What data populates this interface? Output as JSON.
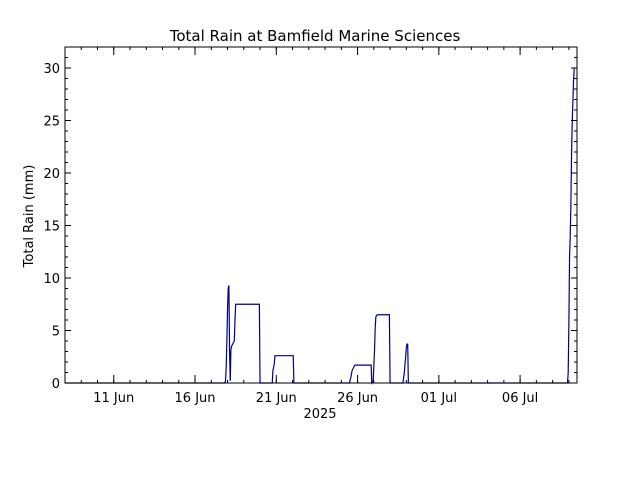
{
  "chart_data": {
    "type": "line",
    "title": "Total Rain at Bamfield Marine Sciences",
    "xlabel": "2025",
    "ylabel": "Total Rain (mm)",
    "x_ticks": [
      {
        "date": "2025-06-11",
        "label": "11 Jun"
      },
      {
        "date": "2025-06-16",
        "label": "16 Jun"
      },
      {
        "date": "2025-06-21",
        "label": "21 Jun"
      },
      {
        "date": "2025-06-26",
        "label": "26 Jun"
      },
      {
        "date": "2025-07-01",
        "label": "01 Jul"
      },
      {
        "date": "2025-07-06",
        "label": "06 Jul"
      }
    ],
    "xlim": [
      "2025-06-08T00:00",
      "2025-07-09T12:00"
    ],
    "ylim": [
      0,
      32
    ],
    "y_ticks": [
      0,
      5,
      10,
      15,
      20,
      25,
      30
    ],
    "grid": false,
    "series_color": "#00008b",
    "series": [
      {
        "x": [
          "2025-06-08T00:00",
          "2025-06-17T20:00",
          "2025-06-17T21:00",
          "2025-06-17T22:00",
          "2025-06-17T23:00",
          "2025-06-18T00:00",
          "2025-06-18T01:00",
          "2025-06-18T02:00",
          "2025-06-18T03:00",
          "2025-06-18T04:00",
          "2025-06-18T05:00",
          "2025-06-18T06:00",
          "2025-06-18T10:00",
          "2025-06-18T11:00",
          "2025-06-18T12:00",
          "2025-06-18T14:00",
          "2025-06-19T23:00",
          "2025-06-20T00:00",
          "2025-06-20T18:00",
          "2025-06-20T19:00",
          "2025-06-20T21:00",
          "2025-06-20T22:00",
          "2025-06-22T01:00",
          "2025-06-22T02:00",
          "2025-06-25T12:00",
          "2025-06-25T14:00",
          "2025-06-25T16:00",
          "2025-06-25T20:00",
          "2025-06-25T22:00",
          "2025-06-26T20:00",
          "2025-06-26T21:00",
          "2025-06-26T23:00",
          "2025-06-27T01:00",
          "2025-06-27T02:00",
          "2025-06-27T03:00",
          "2025-06-27T05:00",
          "2025-06-27T23:00",
          "2025-06-28T00:00",
          "2025-06-28T19:00",
          "2025-06-28T21:00",
          "2025-06-28T23:00",
          "2025-06-29T00:00",
          "2025-06-29T01:00",
          "2025-06-29T02:00",
          "2025-06-29T03:00",
          "2025-07-08T22:00",
          "2025-07-08T23:00",
          "2025-07-09T00:00",
          "2025-07-09T01:00",
          "2025-07-09T02:00",
          "2025-07-09T03:00",
          "2025-07-09T04:00",
          "2025-07-09T05:00",
          "2025-07-09T06:00",
          "2025-07-09T07:00",
          "2025-07-09T08:00"
        ],
        "y": [
          0,
          0,
          0.2,
          1.5,
          4,
          7,
          9,
          9.3,
          3,
          0.2,
          3.2,
          3.5,
          4,
          6,
          7.5,
          7.5,
          7.5,
          0,
          0,
          1.2,
          1.8,
          2.6,
          2.6,
          0,
          0,
          0.5,
          1.2,
          1.7,
          1.7,
          1.7,
          0,
          0.2,
          3,
          5.2,
          6.3,
          6.5,
          6.5,
          0,
          0,
          1,
          2.5,
          3.4,
          3.7,
          3.7,
          0,
          0,
          1,
          5.5,
          12,
          14,
          17,
          22,
          25,
          27,
          29,
          30
        ]
      }
    ]
  }
}
